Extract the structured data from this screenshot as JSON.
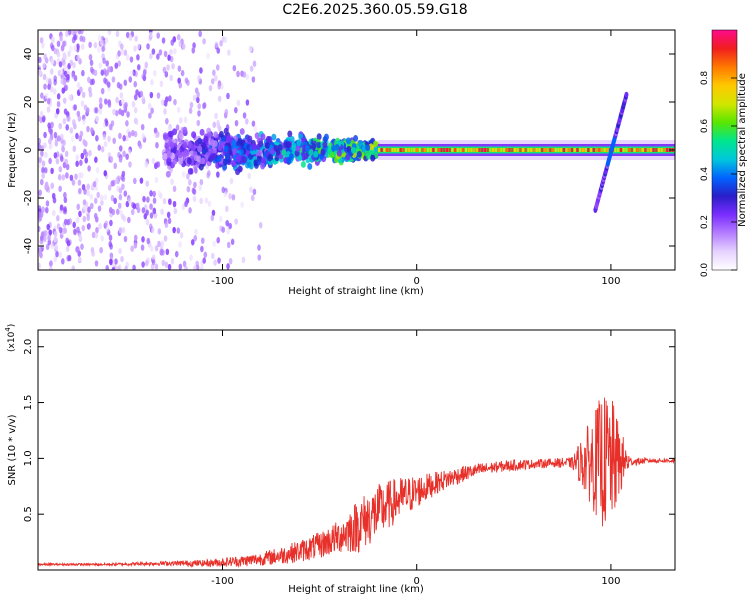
{
  "figure": {
    "title": "C2E6.2025.360.05.59.G18"
  },
  "chart_data": [
    {
      "type": "heatmap",
      "name": "spectrogram",
      "xlabel": "Height of straight line (km)",
      "ylabel": "Frequency (Hz)",
      "xlim": [
        -195,
        133
      ],
      "ylim": [
        -50,
        50
      ],
      "xticks": [
        -100,
        0,
        100
      ],
      "yticks": [
        -40,
        -20,
        0,
        20,
        40
      ],
      "colorbar": {
        "label": "Normalized spectral amplitude",
        "range": [
          0,
          1
        ],
        "ticks": [
          "0.0",
          "0.2",
          "0.4",
          "0.6",
          "0.8"
        ],
        "tick_values": [
          0.0,
          0.2,
          0.4,
          0.6,
          0.8
        ],
        "colormap": [
          "#ffffff",
          "#e6d2ff",
          "#b47dff",
          "#7a2dff",
          "#2a1ec8",
          "#0064ff",
          "#00c8dc",
          "#00e68c",
          "#5ae600",
          "#d2e600",
          "#ffc800",
          "#ff7800",
          "#f01e1e",
          "#ff0a8c"
        ]
      },
      "features": [
        {
          "name": "noise-region",
          "x_range": [
            -195,
            -80
          ],
          "freq_range": [
            -50,
            50
          ],
          "amplitude": 0.15
        },
        {
          "name": "broadening-region",
          "x_range": [
            -130,
            -20
          ],
          "freq_range": [
            -12,
            12
          ],
          "amplitude": 0.3
        },
        {
          "name": "carrier-line",
          "x_range": [
            -20,
            133
          ],
          "freq": 0,
          "amplitude": 0.9
        },
        {
          "name": "chirp",
          "x_range": [
            92,
            108
          ],
          "freq_range": [
            -25,
            23
          ],
          "amplitude": 0.25
        }
      ]
    },
    {
      "type": "line",
      "name": "snr",
      "xlabel": "Height of straight line (km)",
      "ylabel": "SNR (10 * v/v)",
      "scale_label": "(x10",
      "scale_exponent": "4",
      "xlim": [
        -195,
        133
      ],
      "ylim": [
        0,
        2.15
      ],
      "xticks": [
        -100,
        0,
        100
      ],
      "yticks": [
        0.5,
        1.0,
        1.5,
        2.0
      ],
      "ytick_labels": [
        "0.5",
        "1.0",
        "1.5",
        "2.0"
      ],
      "series": [
        {
          "name": "SNR",
          "color": "#e8302a",
          "x": [
            -195,
            -160,
            -130,
            -110,
            -90,
            -80,
            -70,
            -60,
            -50,
            -40,
            -30,
            -20,
            -10,
            0,
            10,
            20,
            30,
            40,
            50,
            60,
            70,
            80,
            90,
            95,
            100,
            105,
            110,
            120,
            133
          ],
          "y": [
            0.05,
            0.05,
            0.06,
            0.06,
            0.08,
            0.1,
            0.13,
            0.17,
            0.22,
            0.3,
            0.4,
            0.52,
            0.63,
            0.7,
            0.78,
            0.84,
            0.89,
            0.92,
            0.94,
            0.95,
            0.96,
            0.96,
            0.97,
            0.97,
            0.97,
            0.97,
            0.97,
            0.98,
            0.98
          ],
          "noise_amplitude": [
            0.01,
            0.01,
            0.02,
            0.03,
            0.05,
            0.06,
            0.08,
            0.1,
            0.12,
            0.15,
            0.25,
            0.25,
            0.2,
            0.15,
            0.1,
            0.08,
            0.06,
            0.05,
            0.05,
            0.04,
            0.04,
            0.05,
            0.4,
            0.6,
            0.6,
            0.3,
            0.04,
            0.02,
            0.02
          ]
        }
      ]
    }
  ]
}
